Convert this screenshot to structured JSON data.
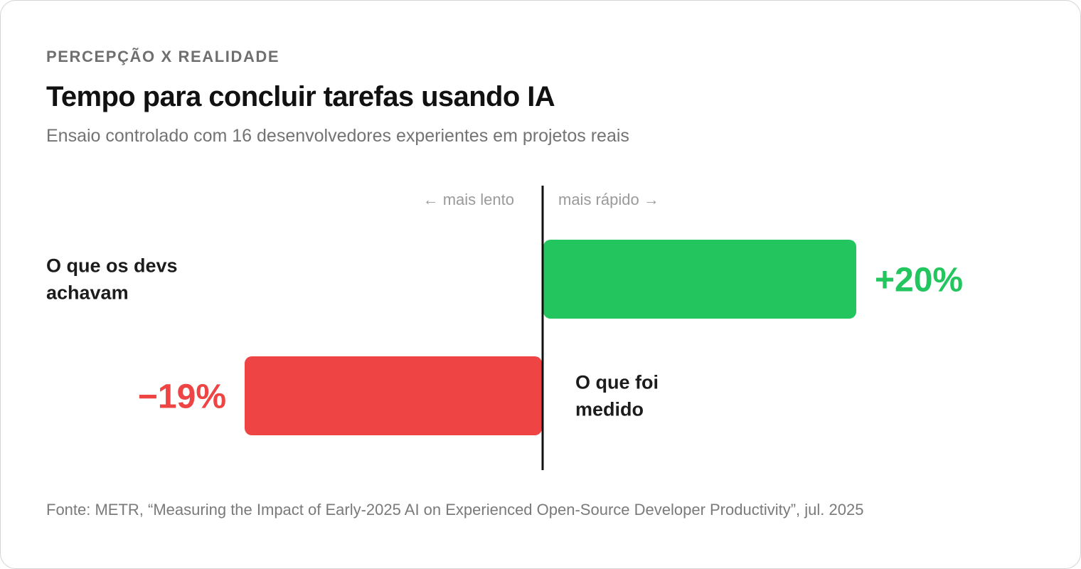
{
  "header": {
    "eyebrow": "PERCEPÇÃO X REALIDADE",
    "title": "Tempo para concluir tarefas usando IA",
    "subtitle": "Ensaio controlado com 16 desenvolvedores experientes em projetos reais"
  },
  "footer": {
    "source": "Fonte: METR, “Measuring the Impact of Early-2025 AI on Experienced Open-Source Developer Productivity”, jul. 2025"
  },
  "chart_data": {
    "type": "bar",
    "orientation": "horizontal-diverging",
    "axis_notes": {
      "negative": "← mais lento",
      "positive": "mais rápido →"
    },
    "series": [
      {
        "category": [
          "O que os devs",
          "achavam"
        ],
        "value": 20,
        "value_label": "+20%",
        "color": "#22c55e"
      },
      {
        "category": [
          "O que foi",
          "medido"
        ],
        "value": -19,
        "value_label": "−19%",
        "color": "#ef4444"
      }
    ]
  }
}
